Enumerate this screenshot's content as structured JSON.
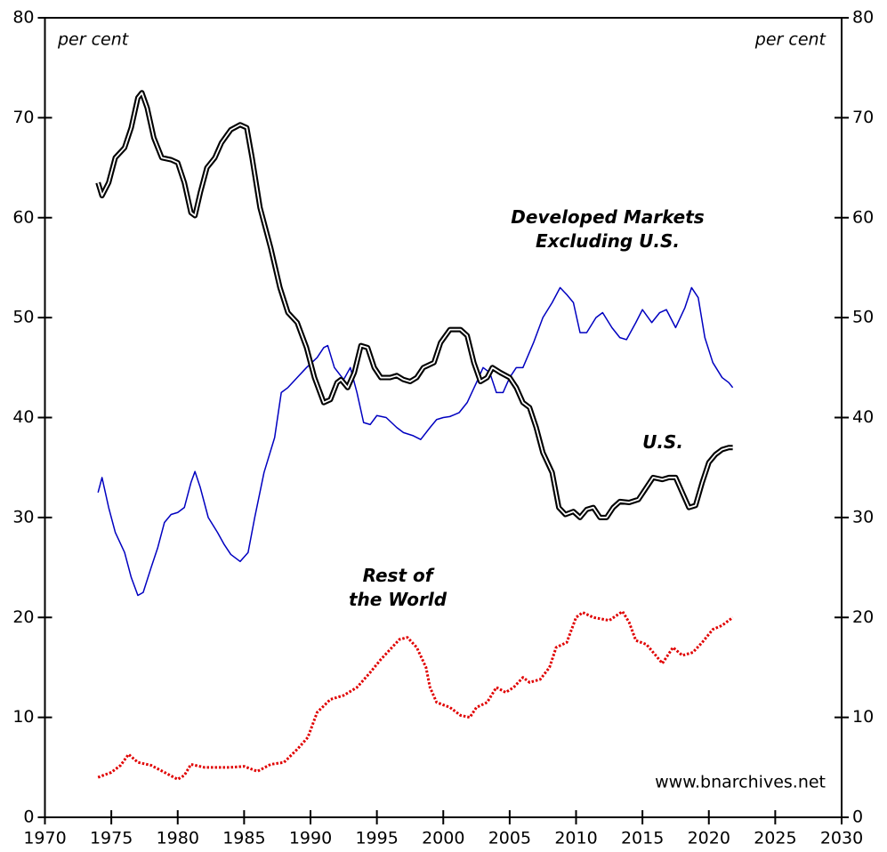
{
  "chart_data": {
    "type": "line",
    "annotations": [
      "per cent",
      "per cent",
      "www.bnarchives.net"
    ],
    "xlim": [
      1970,
      2030
    ],
    "xticks": [
      1970,
      1975,
      1980,
      1985,
      1990,
      1995,
      2000,
      2005,
      2010,
      2015,
      2020,
      2025,
      2030
    ],
    "ylim": [
      0,
      80
    ],
    "yticks": [
      0,
      10,
      20,
      30,
      40,
      50,
      60,
      70,
      80
    ],
    "y2lim": [
      0,
      80
    ],
    "y2ticks": [
      0,
      10,
      20,
      30,
      40,
      50,
      60,
      70,
      80
    ],
    "series": [
      {
        "name": "U.S.",
        "color": "#000000",
        "style": "double",
        "x": [
          1974,
          1974.3,
          1974.8,
          1975.3,
          1976,
          1976.5,
          1977,
          1977.3,
          1977.7,
          1978.2,
          1978.8,
          1979.5,
          1980,
          1980.5,
          1981,
          1981.3,
          1981.7,
          1982.2,
          1982.8,
          1983.3,
          1984,
          1984.7,
          1985.2,
          1985.6,
          1986.2,
          1987,
          1987.7,
          1988.3,
          1989,
          1989.7,
          1990.3,
          1991,
          1991.5,
          1992,
          1992.3,
          1992.8,
          1993.3,
          1993.8,
          1994.3,
          1994.8,
          1995.3,
          1996,
          1996.5,
          1997,
          1997.5,
          1998,
          1998.5,
          1999.3,
          1999.8,
          2000.5,
          2001.3,
          2001.8,
          2002.3,
          2002.8,
          2003.3,
          2003.7,
          2004.3,
          2005,
          2005.5,
          2006,
          2006.5,
          2007,
          2007.5,
          2008.2,
          2008.7,
          2009.2,
          2009.8,
          2010.3,
          2010.8,
          2011.3,
          2011.8,
          2012.3,
          2012.8,
          2013.3,
          2014,
          2014.7,
          2015.3,
          2015.8,
          2016.5,
          2017,
          2017.5,
          2018,
          2018.5,
          2019,
          2019.5,
          2020,
          2020.5,
          2021,
          2021.5,
          2021.8
        ],
        "values": [
          63.5,
          62.2,
          63.5,
          66,
          67,
          69,
          72,
          72.5,
          71,
          68,
          66,
          65.8,
          65.5,
          63.5,
          60.5,
          60.2,
          62.5,
          65,
          66,
          67.5,
          68.8,
          69.3,
          69,
          66,
          61,
          57,
          53,
          50.5,
          49.5,
          47,
          44,
          41.5,
          41.8,
          43.5,
          43.8,
          43,
          44.5,
          47.2,
          47,
          45,
          44,
          44,
          44.2,
          43.8,
          43.6,
          44,
          45,
          45.5,
          47.5,
          48.8,
          48.8,
          48.2,
          45.5,
          43.6,
          44,
          45,
          44.5,
          44,
          43,
          41.5,
          41,
          39,
          36.5,
          34.5,
          31,
          30.3,
          30.6,
          30,
          30.8,
          31,
          30,
          30,
          31,
          31.6,
          31.5,
          31.8,
          33,
          34,
          33.8,
          34,
          34,
          32.5,
          31,
          31.2,
          33.5,
          35.5,
          36.3,
          36.8,
          37,
          37
        ]
      },
      {
        "name": "Developed Markets\nExcluding U.S.",
        "color": "#0000c0",
        "style": "solid",
        "x": [
          1974,
          1974.3,
          1974.8,
          1975.3,
          1976,
          1976.5,
          1977,
          1977.4,
          1978,
          1978.5,
          1979,
          1979.5,
          1980,
          1980.5,
          1981,
          1981.3,
          1981.7,
          1982.3,
          1983,
          1983.5,
          1984,
          1984.7,
          1985.3,
          1985.8,
          1986.5,
          1987.3,
          1987.8,
          1988.3,
          1989,
          1989.7,
          1990.5,
          1991,
          1991.3,
          1991.8,
          1992.5,
          1993,
          1993.5,
          1994,
          1994.5,
          1995,
          1995.7,
          1996.5,
          1997,
          1997.7,
          1998.3,
          1999,
          1999.5,
          2000,
          2000.5,
          2001.2,
          2001.8,
          2002.5,
          2003,
          2003.5,
          2004,
          2004.5,
          2005,
          2005.5,
          2006,
          2006.8,
          2007.5,
          2008.2,
          2008.8,
          2009.3,
          2009.8,
          2010.3,
          2010.8,
          2011.5,
          2012,
          2012.7,
          2013.3,
          2013.8,
          2014.5,
          2015,
          2015.7,
          2016.3,
          2016.8,
          2017.5,
          2018.2,
          2018.7,
          2019.2,
          2019.7,
          2020.3,
          2021,
          2021.5,
          2021.8
        ],
        "values": [
          32.5,
          34,
          31,
          28.5,
          26.5,
          24,
          22.2,
          22.5,
          25,
          27,
          29.5,
          30.3,
          30.5,
          31,
          33.5,
          34.6,
          33,
          30,
          28.5,
          27.3,
          26.3,
          25.6,
          26.5,
          30,
          34.5,
          38,
          42.5,
          43,
          44,
          45,
          46,
          47,
          47.2,
          45,
          43.8,
          45,
          42.5,
          39.5,
          39.3,
          40.2,
          40,
          39,
          38.5,
          38.2,
          37.8,
          39,
          39.8,
          40,
          40.1,
          40.5,
          41.5,
          43.5,
          45,
          44.5,
          42.5,
          42.5,
          44,
          45,
          45,
          47.5,
          50,
          51.5,
          53,
          52.3,
          51.5,
          48.5,
          48.5,
          50,
          50.5,
          49,
          48,
          47.8,
          49.5,
          50.8,
          49.5,
          50.5,
          50.8,
          49,
          51,
          53,
          52,
          48,
          45.5,
          44,
          43.5,
          43
        ]
      },
      {
        "name": "Rest of\nthe World",
        "color": "#e00000",
        "style": "dotted",
        "x": [
          1974,
          1975,
          1975.7,
          1976.3,
          1977,
          1978,
          1979,
          1980,
          1980.5,
          1981,
          1982,
          1983,
          1984,
          1985,
          1986,
          1987,
          1988,
          1989,
          1989.8,
          1990.5,
          1991.5,
          1992.5,
          1993.5,
          1994.5,
          1995.3,
          1996,
          1996.7,
          1997.3,
          1998,
          1998.7,
          1999,
          1999.5,
          2000.5,
          2001.3,
          2002,
          2002.5,
          2003.3,
          2004,
          2004.7,
          2005.3,
          2006,
          2006.5,
          2007.3,
          2008,
          2008.5,
          2009.3,
          2010,
          2010.5,
          2011.3,
          2012.5,
          2013.5,
          2014,
          2014.5,
          2015.3,
          2016,
          2016.5,
          2017.3,
          2018,
          2018.8,
          2019.5,
          2020.3,
          2021,
          2021.8
        ],
        "values": [
          4,
          4.5,
          5.2,
          6.3,
          5.5,
          5.2,
          4.5,
          3.8,
          4.2,
          5.3,
          5,
          5,
          5,
          5.1,
          4.6,
          5.3,
          5.5,
          6.8,
          8,
          10.5,
          11.8,
          12.2,
          13,
          14.5,
          15.8,
          16.8,
          17.8,
          18,
          17,
          15,
          13,
          11.5,
          11,
          10.2,
          10,
          11,
          11.5,
          13,
          12.5,
          13,
          14,
          13.5,
          13.8,
          15,
          17,
          17.5,
          20,
          20.5,
          20,
          19.7,
          20.6,
          19.5,
          17.7,
          17.3,
          16.2,
          15.4,
          17,
          16.2,
          16.5,
          17.5,
          18.8,
          19.2,
          20
        ]
      }
    ]
  }
}
